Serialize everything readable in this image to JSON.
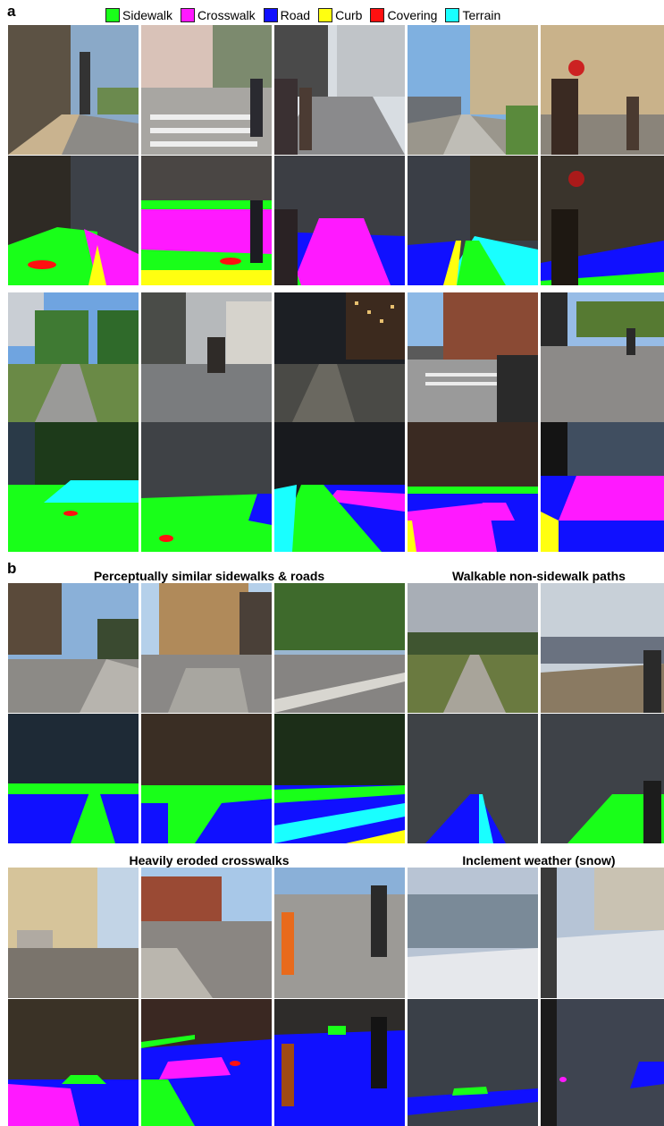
{
  "panel_labels": {
    "a": "a",
    "b": "b"
  },
  "legend": [
    {
      "label": "Sidewalk",
      "color": "#19ff19"
    },
    {
      "label": "Crosswalk",
      "color": "#ff19ff"
    },
    {
      "label": "Road",
      "color": "#1010ff"
    },
    {
      "label": "Curb",
      "color": "#ffff10"
    },
    {
      "label": "Covering",
      "color": "#ff1010"
    },
    {
      "label": "Terrain",
      "color": "#19ffff"
    }
  ],
  "section_titles": {
    "perceptual": "Perceptually similar sidewalks & roads",
    "walkable": "Walkable non-sidewalk paths",
    "eroded": "Heavily eroded crosswalks",
    "weather": "Inclement weather (snow)"
  },
  "colors": {
    "sidewalk": "#19ff19",
    "crosswalk": "#ff19ff",
    "road": "#1010ff",
    "curb": "#ffff10",
    "covering": "#ff1010",
    "terrain": "#19ffff"
  }
}
